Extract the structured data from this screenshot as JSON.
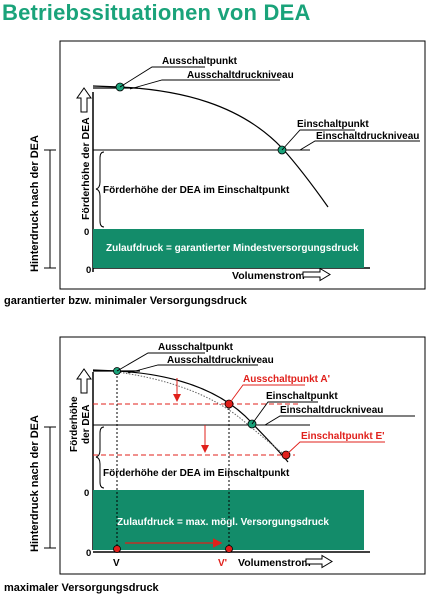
{
  "title": "Betriebssituationen von DEA",
  "colors": {
    "title": "#1aa37a",
    "fill": "#138c6a",
    "marker_green": "#1aa37a",
    "marker_red": "#e0201b"
  },
  "diagram1": {
    "caption": "garantierter bzw. minimaler Versorgungsdruck",
    "ylabel_outer": "Hinterdruck nach der DEA",
    "ylabel_inner": "Förderhöhe der DEA",
    "label_ausschaltpunkt": "Ausschaltpunkt",
    "label_ausschaltdruckniveau": "Ausschaltdruckniveau",
    "label_einschaltpunkt": "Einschaltpunkt",
    "label_einschaltdruckniveau": "Einschaltdruckniveau",
    "label_foerderhoehe": "Förderhöhe der DEA im Einschaltpunkt",
    "box_text": "Zulaufdruck = garantierter Mindestversorgungsdruck",
    "xlabel": "Volumenstrom",
    "zero_y": "0",
    "zero_x": "0"
  },
  "diagram2": {
    "caption": "maximaler Versorgungsdruck",
    "ylabel_outer": "Hinterdruck nach der DEA",
    "ylabel_inner_line1": "Förderhöhe",
    "ylabel_inner_line2": "der DEA",
    "label_ausschaltpunkt": "Ausschaltpunkt",
    "label_ausschaltdruckniveau": "Ausschaltdruckniveau",
    "label_ausschaltpunkt_a": "Ausschaltpunkt A'",
    "label_einschaltpunkt": "Einschaltpunkt",
    "label_einschaltdruckniveau": "Einschaltdruckniveau",
    "label_einschaltpunkt_e": "Einschaltpunkt E'",
    "label_foerderhoehe": "Förderhöhe der DEA im Einschaltpunkt",
    "box_text": "Zulaufdruck = max. mögl. Versorgungsdruck",
    "xlabel": "Volumenstrom",
    "zero_y": "0",
    "zero_x": "0",
    "v_label": "V",
    "v_prime_label": "V'"
  }
}
